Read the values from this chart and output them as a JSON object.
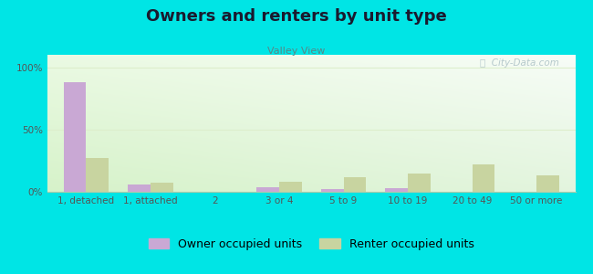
{
  "title": "Owners and renters by unit type",
  "subtitle": "Valley View",
  "categories": [
    "1, detached",
    "1, attached",
    "2",
    "3 or 4",
    "5 to 9",
    "10 to 19",
    "20 to 49",
    "50 or more"
  ],
  "owner_values": [
    88,
    6,
    0,
    4,
    2,
    3,
    0,
    0
  ],
  "renter_values": [
    27,
    7,
    0,
    8,
    12,
    15,
    22,
    13
  ],
  "owner_color": "#c9a8d4",
  "renter_color": "#c8d4a0",
  "background_color": "#00e5e5",
  "yticks": [
    0,
    50,
    100
  ],
  "ylim": [
    0,
    110
  ],
  "bar_width": 0.35,
  "title_fontsize": 13,
  "subtitle_fontsize": 8,
  "legend_fontsize": 9,
  "tick_fontsize": 7.5,
  "watermark_text": "ⓘ  City-Data.com",
  "watermark_color": "#b0c4c8",
  "grid_color": "#ddeedd",
  "axis_label_color": "#555555"
}
